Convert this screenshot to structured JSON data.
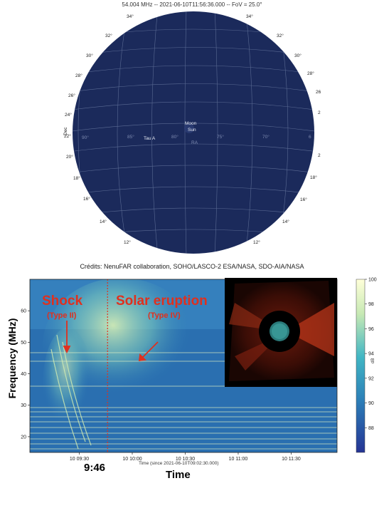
{
  "sky_map": {
    "title": "54.004 MHz -- 2021-06-10T11:56:36.000 -- FoV = 25.0°",
    "dec_axis_label": "Dec",
    "ra_axis_label": "RA",
    "dec_ticks_left": [
      "34°",
      "32°",
      "30°",
      "28°",
      "26°",
      "24°",
      "22°",
      "20°",
      "18°",
      "16°",
      "14°",
      "12°"
    ],
    "dec_ticks_right": [
      "34°",
      "32°",
      "30°",
      "28°",
      "26",
      "2",
      "2",
      "18°",
      "16°",
      "14°",
      "12°"
    ],
    "ra_ticks": [
      "90°",
      "85°",
      "80°",
      "75°",
      "70°",
      "6"
    ],
    "sources": [
      "Moon",
      "Sun",
      "Tau A"
    ],
    "colors": {
      "sky": "#1b2a5b",
      "grid": "#5a6a93"
    }
  },
  "credits": "Crédits: NenuFAR collaboration, SOHO/LASCO-2 ESA/NASA, SDO-AIA/NASA",
  "annotations": {
    "shock": "Shock",
    "shock_type": "(Type II)",
    "eruption": "Solar eruption",
    "eruption_type": "(Type IV)",
    "marker_time": "9:46",
    "time_label": "Time",
    "freq_label": "Frequency (MHz)",
    "color": "#e0301e"
  },
  "chart_data": {
    "type": "heatmap",
    "xlabel": "Time (since 2021-06-10T09:02:30.000)",
    "ylabel": "Frequency (MHz)",
    "x_tick_labels": [
      "10 09:30",
      "10 10:00",
      "10 10:30",
      "10 11:00",
      "10 11:30"
    ],
    "x_ticks_minutes": [
      570,
      600,
      630,
      660,
      690
    ],
    "xlim_minutes": [
      542,
      716
    ],
    "y_ticks": [
      20,
      30,
      40,
      50,
      60
    ],
    "ylim": [
      15,
      70
    ],
    "colorbar": {
      "label": "dB",
      "min": 86,
      "max": 100,
      "ticks": [
        88,
        90,
        92,
        94,
        96,
        98,
        100
      ]
    },
    "marker_minutes": 586
  },
  "inset": {
    "name": "LASCO C2 coronagraph image"
  }
}
